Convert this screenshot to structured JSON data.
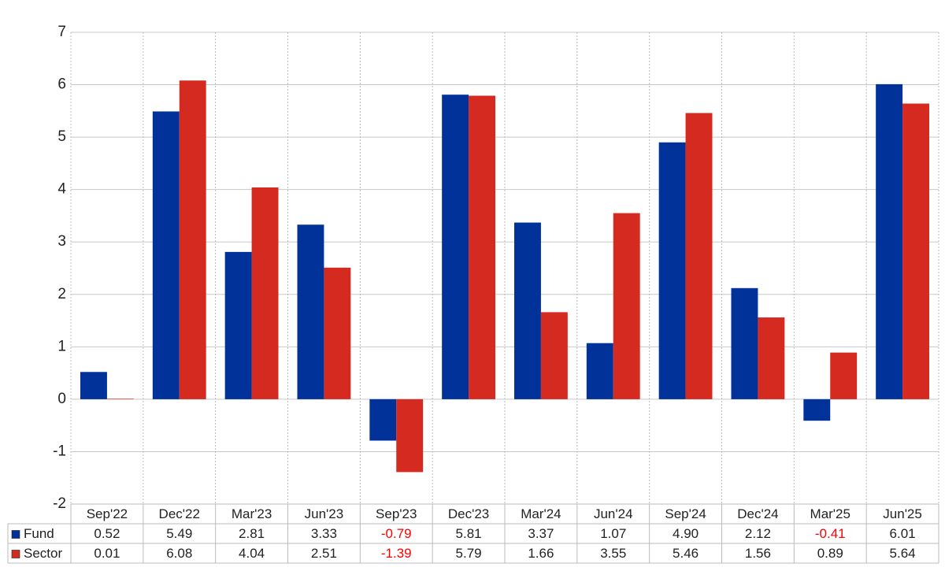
{
  "chart_data": {
    "type": "bar",
    "categories": [
      "Sep'22",
      "Dec'22",
      "Mar'23",
      "Jun'23",
      "Sep'23",
      "Dec'23",
      "Mar'24",
      "Jun'24",
      "Sep'24",
      "Dec'24",
      "Mar'25",
      "Jun'25"
    ],
    "series": [
      {
        "name": "Fund",
        "color": "#003299",
        "values": [
          0.52,
          5.49,
          2.81,
          3.33,
          -0.79,
          5.81,
          3.37,
          1.07,
          4.9,
          2.12,
          -0.41,
          6.01
        ],
        "value_labels": [
          "0.52",
          "5.49",
          "2.81",
          "3.33",
          "-0.79",
          "5.81",
          "3.37",
          "1.07",
          "4.90",
          "2.12",
          "-0.41",
          "6.01"
        ]
      },
      {
        "name": "Sector",
        "color": "#d42a20",
        "values": [
          0.01,
          6.08,
          4.04,
          2.51,
          -1.39,
          5.79,
          1.66,
          3.55,
          5.46,
          1.56,
          0.89,
          5.64
        ],
        "value_labels": [
          "0.01",
          "6.08",
          "4.04",
          "2.51",
          "-1.39",
          "5.79",
          "1.66",
          "3.55",
          "5.46",
          "1.56",
          "0.89",
          "5.64"
        ]
      }
    ],
    "ylim": [
      -2,
      7
    ],
    "yticks": [
      -2,
      -1,
      0,
      1,
      2,
      3,
      4,
      5,
      6,
      7
    ],
    "grid": true,
    "negative_color": "#ff0000"
  }
}
